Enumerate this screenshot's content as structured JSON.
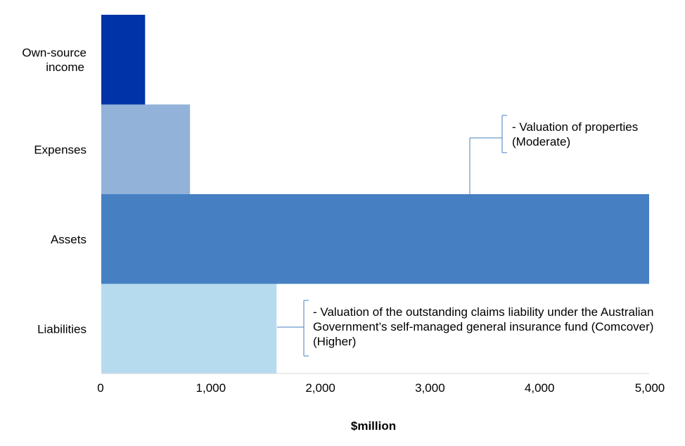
{
  "chart_data": {
    "type": "bar",
    "orientation": "horizontal",
    "categories": [
      [
        "Own-source",
        "income"
      ],
      [
        "Expenses"
      ],
      [
        "Assets"
      ],
      [
        "Liabilities"
      ]
    ],
    "values": [
      400,
      810,
      5000,
      1600
    ],
    "colors": [
      "#0033a8",
      "#92b2da",
      "#4680c2",
      "#b7dbee"
    ],
    "xlabel": "$million",
    "xlim": [
      0,
      5000
    ],
    "xticks": [
      "0",
      "1,000",
      "2,000",
      "3,000",
      "4,000",
      "5,000"
    ],
    "grid": false,
    "annotations": [
      {
        "category": "Assets",
        "lines": [
          "- Valuation of properties",
          "(Moderate)"
        ]
      },
      {
        "category": "Liabilities",
        "lines": [
          "- Valuation of the outstanding claims liability under the Australian",
          "Government’s self-managed general insurance fund (Comcover)",
          "(Higher)"
        ]
      }
    ]
  },
  "colors": {
    "annotation_line": "#4680c2",
    "axis": "#d9d9d9"
  }
}
